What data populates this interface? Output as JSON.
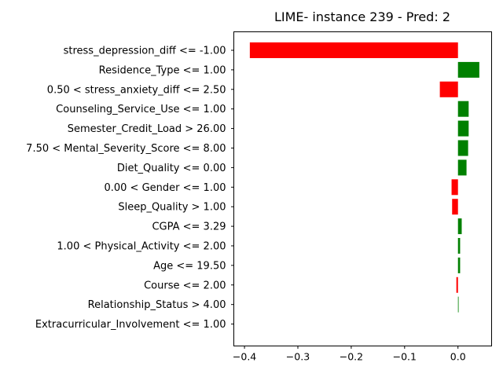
{
  "chart_data": {
    "type": "bar",
    "orientation": "horizontal",
    "title": "LIME- instance 239 - Pred: 2",
    "xlabel": "",
    "ylabel": "",
    "xlim": [
      -0.42,
      0.063
    ],
    "xticks": [
      -0.4,
      -0.3,
      -0.2,
      -0.1,
      0.0
    ],
    "xtick_labels": [
      "−0.4",
      "−0.3",
      "−0.2",
      "−0.1",
      "0.0"
    ],
    "grid": false,
    "legend": "none",
    "colors": {
      "positive": "#008000",
      "negative": "#ff0000"
    },
    "categories": [
      "stress_depression_diff <= -1.00",
      "Residence_Type <= 1.00",
      "0.50 < stress_anxiety_diff <= 2.50",
      "Counseling_Service_Use <= 1.00",
      "Semester_Credit_Load > 26.00",
      "7.50 < Mental_Severity_Score <= 8.00",
      "Diet_Quality <= 0.00",
      "0.00 < Gender <= 1.00",
      "Sleep_Quality > 1.00",
      "CGPA <= 3.29",
      "1.00 < Physical_Activity <= 2.00",
      "Age <= 19.50",
      "Course <= 2.00",
      "Relationship_Status > 4.00",
      "Extracurricular_Involvement <= 1.00"
    ],
    "values": [
      -0.39,
      0.04,
      -0.034,
      0.02,
      0.02,
      0.019,
      0.016,
      -0.012,
      -0.011,
      0.007,
      0.004,
      0.004,
      -0.003,
      0.001,
      0.0
    ]
  }
}
